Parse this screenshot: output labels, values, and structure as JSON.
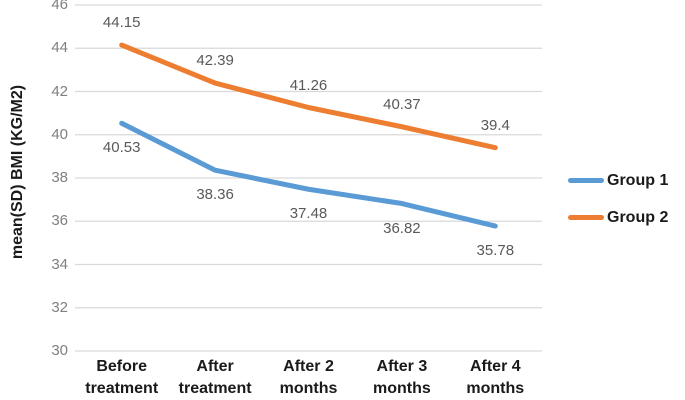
{
  "chart_data": {
    "type": "line",
    "title": "",
    "ylabel": "mean(SD) BMI (KG/M2)",
    "xlabel": "",
    "categories": [
      "Before\ntreatment",
      "After\ntreatment",
      "After 2\nmonths",
      "After 3\nmonths",
      "After 4\nmonths"
    ],
    "series": [
      {
        "name": "Group 1",
        "values": [
          40.53,
          38.36,
          37.48,
          36.82,
          35.78
        ],
        "labels": [
          "40.53",
          "38.36",
          "37.48",
          "36.82",
          "35.78"
        ],
        "color": "#5B9BD5",
        "label_position": "below"
      },
      {
        "name": "Group 2",
        "values": [
          44.15,
          42.39,
          41.26,
          40.37,
          39.4
        ],
        "labels": [
          "44.15",
          "42.39",
          "41.26",
          "40.37",
          "39.4"
        ],
        "color": "#ED7D31",
        "label_position": "above"
      }
    ],
    "ylim": [
      30,
      46
    ],
    "yticks": [
      30,
      32,
      34,
      36,
      38,
      40,
      42,
      44,
      46
    ],
    "grid": true,
    "gridline_color": "#D9D9D9",
    "tick_label_color": "#7F7F7F",
    "data_label_color": "#595959",
    "legend_position": "right",
    "background": "#FFFFFF"
  }
}
